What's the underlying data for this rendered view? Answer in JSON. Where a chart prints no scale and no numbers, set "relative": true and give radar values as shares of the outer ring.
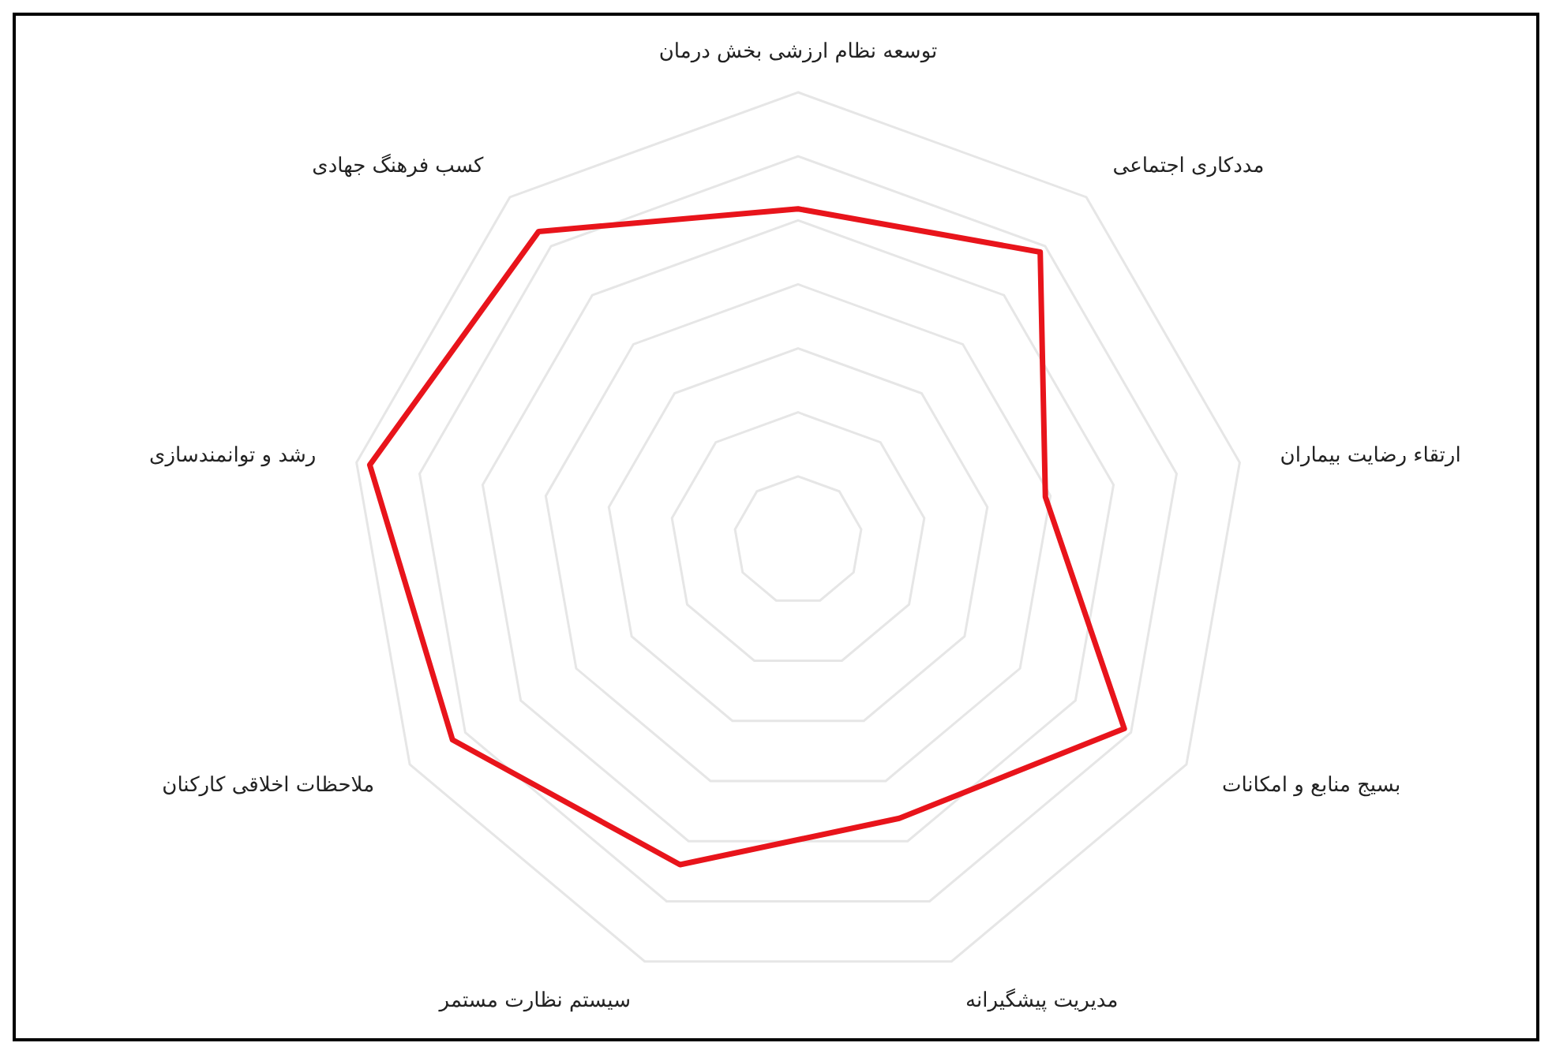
{
  "chart_data": {
    "type": "radar",
    "relative": true,
    "grid": true,
    "categories": [
      "توسعه نظام ارزشی بخش درمان",
      "مددکاری اجتماعی",
      "ارتقاء رضایت بیماران",
      "بسیج منابع و امکانات",
      "مدیریت پیشگیرانه",
      "سیستم نظارت مستمر",
      "ملاحظات اخلاقی کارکنان",
      "رشد و توانمندسازی",
      "کسب فرهنگ جهادی"
    ],
    "series": [
      {
        "color": "#e8141b",
        "values": [
          0.74,
          0.84,
          0.56,
          0.84,
          0.66,
          0.77,
          0.89,
          0.97,
          0.9
        ]
      }
    ]
  }
}
